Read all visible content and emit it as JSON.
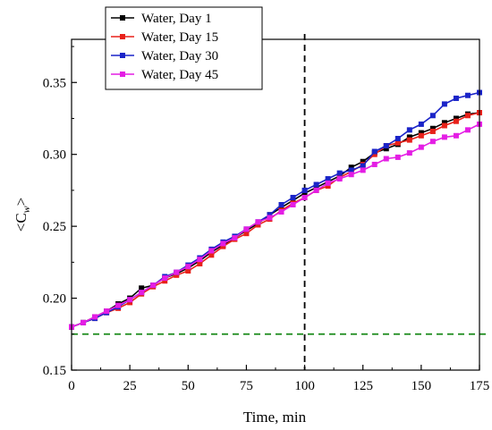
{
  "chart_data": {
    "type": "line",
    "xlabel": "Time, min",
    "ylabel_parts": [
      "<C",
      "w",
      ">"
    ],
    "xlim": [
      0,
      175
    ],
    "ylim": [
      0.15,
      0.38
    ],
    "xticks": [
      0,
      25,
      50,
      75,
      100,
      125,
      150,
      175
    ],
    "yticks": [
      0.15,
      0.2,
      0.25,
      0.3,
      0.35
    ],
    "ytick_labels": [
      "0.15",
      "0.20",
      "0.25",
      "0.30",
      "0.35"
    ],
    "grid": false,
    "legend_position": "top-left",
    "reference_lines": [
      {
        "orientation": "vertical",
        "x": 100,
        "color": "#000000",
        "style": "dashed"
      },
      {
        "orientation": "horizontal",
        "y": 0.175,
        "color": "#1a8a1a",
        "style": "dashed"
      }
    ],
    "series": [
      {
        "name": "Water, Day 1",
        "color": "#000000",
        "x": [
          0,
          5,
          10,
          15,
          20,
          25,
          30,
          35,
          40,
          45,
          50,
          55,
          60,
          65,
          70,
          75,
          80,
          85,
          90,
          95,
          100,
          105,
          110,
          115,
          120,
          125,
          130,
          135,
          140,
          145,
          150,
          155,
          160,
          165,
          170,
          175
        ],
        "y": [
          0.18,
          0.183,
          0.187,
          0.191,
          0.196,
          0.2,
          0.207,
          0.209,
          0.214,
          0.217,
          0.221,
          0.226,
          0.232,
          0.237,
          0.242,
          0.247,
          0.252,
          0.258,
          0.263,
          0.268,
          0.273,
          0.277,
          0.281,
          0.285,
          0.291,
          0.295,
          0.301,
          0.304,
          0.307,
          0.312,
          0.315,
          0.318,
          0.322,
          0.325,
          0.328,
          0.329
        ]
      },
      {
        "name": "Water, Day 15",
        "color": "#e8211a",
        "x": [
          0,
          5,
          10,
          15,
          20,
          25,
          30,
          35,
          40,
          45,
          50,
          55,
          60,
          65,
          70,
          75,
          80,
          85,
          90,
          95,
          100,
          105,
          110,
          115,
          120,
          125,
          130,
          135,
          140,
          145,
          150,
          155,
          160,
          165,
          170,
          175
        ],
        "y": [
          0.18,
          0.183,
          0.186,
          0.19,
          0.193,
          0.197,
          0.203,
          0.208,
          0.212,
          0.216,
          0.219,
          0.224,
          0.23,
          0.236,
          0.241,
          0.245,
          0.251,
          0.255,
          0.261,
          0.266,
          0.27,
          0.275,
          0.278,
          0.284,
          0.288,
          0.293,
          0.3,
          0.306,
          0.308,
          0.31,
          0.313,
          0.316,
          0.32,
          0.323,
          0.327,
          0.329
        ]
      },
      {
        "name": "Water, Day 30",
        "color": "#1a24c8",
        "x": [
          0,
          5,
          10,
          15,
          20,
          25,
          30,
          35,
          40,
          45,
          50,
          55,
          60,
          65,
          70,
          75,
          80,
          85,
          90,
          95,
          100,
          105,
          110,
          115,
          120,
          125,
          130,
          135,
          140,
          145,
          150,
          155,
          160,
          165,
          170,
          175
        ],
        "y": [
          0.18,
          0.183,
          0.186,
          0.19,
          0.194,
          0.199,
          0.204,
          0.209,
          0.215,
          0.218,
          0.223,
          0.228,
          0.234,
          0.239,
          0.243,
          0.248,
          0.253,
          0.258,
          0.265,
          0.27,
          0.275,
          0.279,
          0.283,
          0.287,
          0.289,
          0.292,
          0.302,
          0.306,
          0.311,
          0.317,
          0.321,
          0.327,
          0.335,
          0.339,
          0.341,
          0.343
        ]
      },
      {
        "name": "Water, Day 45",
        "color": "#e41ee4",
        "x": [
          0,
          5,
          10,
          15,
          20,
          25,
          30,
          35,
          40,
          45,
          50,
          55,
          60,
          65,
          70,
          75,
          80,
          85,
          90,
          95,
          100,
          105,
          110,
          115,
          120,
          125,
          130,
          135,
          140,
          145,
          150,
          155,
          160,
          165,
          170,
          175
        ],
        "y": [
          0.18,
          0.183,
          0.187,
          0.191,
          0.195,
          0.199,
          0.204,
          0.209,
          0.214,
          0.218,
          0.222,
          0.227,
          0.233,
          0.238,
          0.242,
          0.248,
          0.253,
          0.256,
          0.26,
          0.265,
          0.27,
          0.275,
          0.28,
          0.283,
          0.286,
          0.289,
          0.293,
          0.297,
          0.298,
          0.301,
          0.305,
          0.309,
          0.312,
          0.313,
          0.317,
          0.321
        ]
      }
    ]
  }
}
